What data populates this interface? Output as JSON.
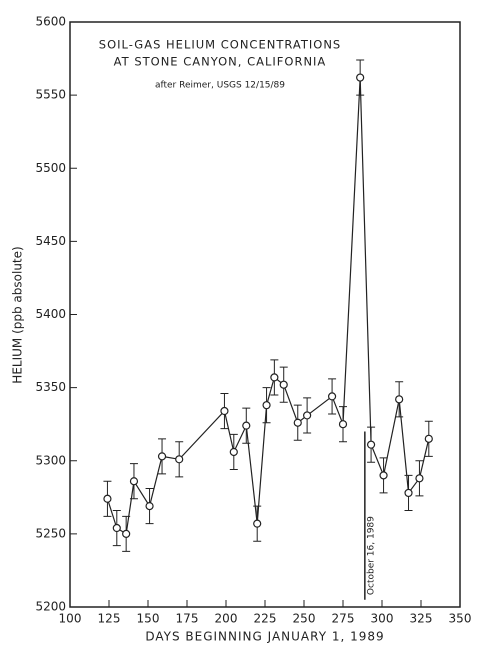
{
  "chart_data": {
    "type": "line",
    "title": "SOIL-GAS HELIUM CONCENTRATIONS",
    "subtitle": "AT STONE CANYON, CALIFORNIA",
    "source": "after Reimer, USGS 12/15/89",
    "x_label": "DAYS BEGINNING JANUARY 1, 1989",
    "y_label": "HELIUM (ppb absolute)",
    "x": [
      124,
      130,
      136,
      141,
      151,
      159,
      170,
      199,
      205,
      213,
      220,
      226,
      231,
      237,
      246,
      252,
      268,
      275,
      286,
      293,
      301,
      311,
      317,
      324,
      330
    ],
    "series": [
      {
        "name": "Helium",
        "color": "#222222",
        "values": [
          5274,
          5254,
          5250,
          5286,
          5269,
          5303,
          5301,
          5334,
          5306,
          5324,
          5257,
          5338,
          5357,
          5352,
          5326,
          5331,
          5344,
          5325,
          5562,
          5311,
          5290,
          5342,
          5278,
          5288,
          5315
        ],
        "errors": [
          12,
          12,
          12,
          12,
          12,
          12,
          12,
          12,
          12,
          12,
          12,
          12,
          12,
          12,
          12,
          12,
          12,
          12,
          12,
          12,
          12,
          12,
          12,
          12,
          12
        ]
      }
    ],
    "annotation": {
      "text": "October 16, 1989",
      "x": 289,
      "y": [
        5205,
        5320
      ]
    },
    "xlim": [
      100,
      350
    ],
    "xticks": [
      100,
      125,
      150,
      175,
      200,
      225,
      250,
      275,
      300,
      325,
      350
    ],
    "ylim": [
      5200,
      5600
    ],
    "yticks": [
      5200,
      5250,
      5300,
      5350,
      5400,
      5450,
      5500,
      5550,
      5600
    ],
    "grid": false
  }
}
